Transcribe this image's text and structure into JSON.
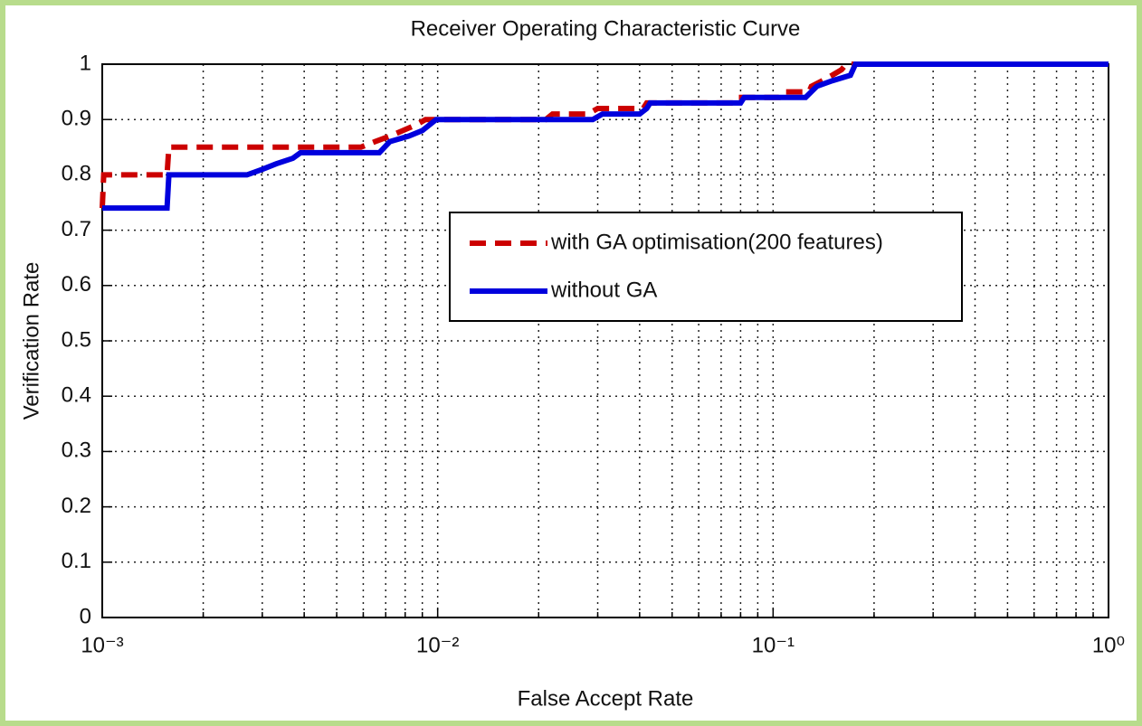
{
  "chart_data": {
    "type": "line",
    "title": "Receiver Operating Characteristic Curve",
    "xlabel": "False Accept Rate",
    "ylabel": "Verification Rate",
    "xscale": "log",
    "xlim": [
      0.001,
      1
    ],
    "xticks": [
      {
        "value": 0.001,
        "label": "10⁻³"
      },
      {
        "value": 0.01,
        "label": "10⁻²"
      },
      {
        "value": 0.1,
        "label": "10⁻¹"
      },
      {
        "value": 1,
        "label": "10⁰"
      }
    ],
    "ylim": [
      0,
      1
    ],
    "yticks": [
      0,
      0.1,
      0.2,
      0.3,
      0.4,
      0.5,
      0.6,
      0.7,
      0.8,
      0.9,
      1
    ],
    "grid": true,
    "legend": "center right",
    "series": [
      {
        "name": "with GA optimisation(200 features)",
        "color": "#cc0000",
        "dash": true,
        "x": [
          0.001,
          0.00101,
          0.00156,
          0.00158,
          0.0059,
          0.0065,
          0.0072,
          0.0086,
          0.0092,
          0.021,
          0.022,
          0.028,
          0.03,
          0.041,
          0.042,
          0.076,
          0.078,
          0.104,
          0.106,
          0.128,
          0.13,
          0.14,
          0.15,
          0.16,
          0.165,
          1
        ],
        "values": [
          0.74,
          0.8,
          0.8,
          0.85,
          0.85,
          0.86,
          0.87,
          0.89,
          0.9,
          0.9,
          0.91,
          0.91,
          0.92,
          0.92,
          0.93,
          0.93,
          0.94,
          0.94,
          0.95,
          0.95,
          0.96,
          0.97,
          0.98,
          0.99,
          1,
          1
        ]
      },
      {
        "name": "without GA",
        "color": "#0000dd",
        "dash": false,
        "x": [
          0.001,
          0.00156,
          0.00158,
          0.0027,
          0.003,
          0.0033,
          0.0037,
          0.0039,
          0.0067,
          0.0072,
          0.0082,
          0.009,
          0.0099,
          0.029,
          0.031,
          0.04,
          0.042,
          0.043,
          0.08,
          0.082,
          0.125,
          0.135,
          0.15,
          0.17,
          0.176,
          1
        ],
        "values": [
          0.74,
          0.74,
          0.8,
          0.8,
          0.81,
          0.82,
          0.83,
          0.84,
          0.84,
          0.86,
          0.87,
          0.88,
          0.9,
          0.9,
          0.91,
          0.91,
          0.92,
          0.93,
          0.93,
          0.94,
          0.94,
          0.96,
          0.97,
          0.98,
          1,
          1
        ]
      }
    ]
  }
}
